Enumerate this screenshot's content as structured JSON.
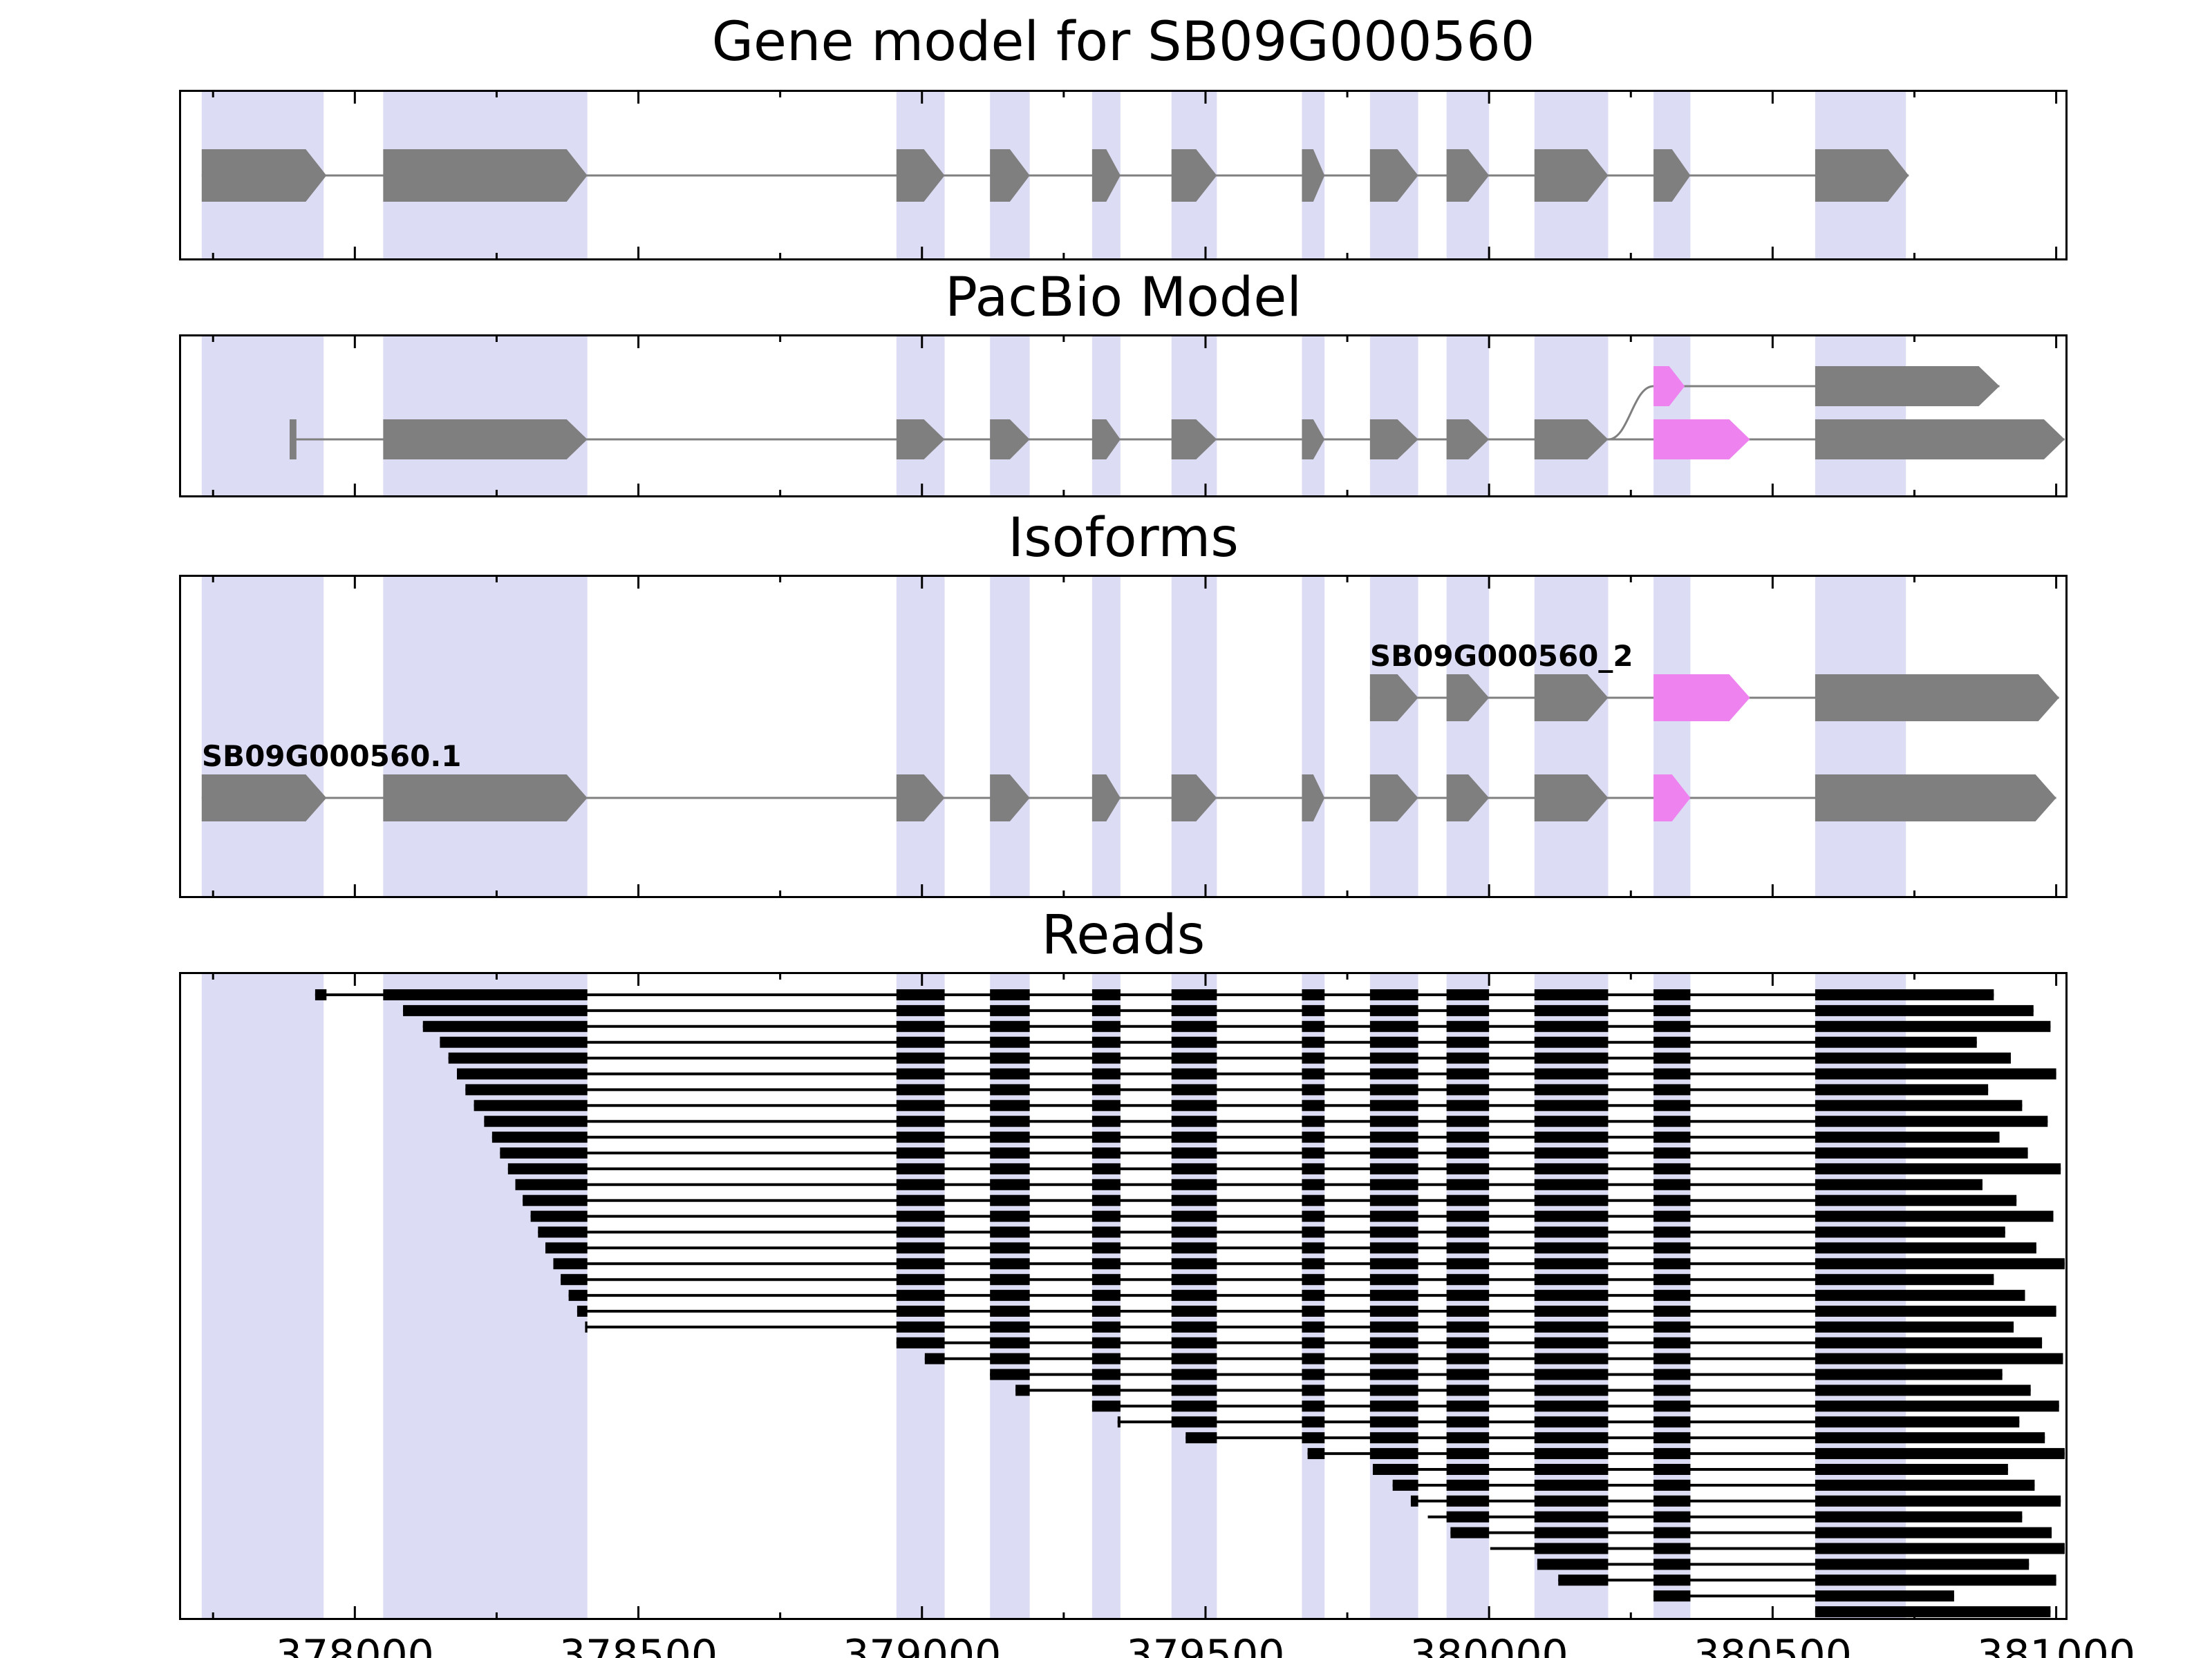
{
  "titles": {
    "gene_model": "Gene model for SB09G000560",
    "pacbio": "PacBio Model",
    "isoforms": "Isoforms",
    "reads": "Reads"
  },
  "colors": {
    "exon": "#7f7f7f",
    "novel": "#ee82ee",
    "band": "#dcdcf4",
    "line": "#7f7f7f",
    "read": "#000000",
    "border": "#000000"
  },
  "chart_data": {
    "type": "gene-model-browser",
    "xlim": [
      377690,
      381020
    ],
    "x_major_ticks": [
      {
        "value": 378000,
        "label": "378000"
      },
      {
        "value": 378500,
        "label": "378500"
      },
      {
        "value": 379000,
        "label": "379000"
      },
      {
        "value": 379500,
        "label": "379500"
      },
      {
        "value": 380000,
        "label": "380000"
      },
      {
        "value": 380500,
        "label": "380500"
      },
      {
        "value": 381000,
        "label": "381000"
      }
    ],
    "x_minor_step": 250,
    "x_major_step": 500,
    "highlight_regions": [
      [
        377730,
        377945
      ],
      [
        378050,
        378410
      ],
      [
        378955,
        379040
      ],
      [
        379120,
        379190
      ],
      [
        379300,
        379350
      ],
      [
        379440,
        379520
      ],
      [
        379670,
        379710
      ],
      [
        379790,
        379875
      ],
      [
        379925,
        380000
      ],
      [
        380080,
        380210
      ],
      [
        380290,
        380355
      ],
      [
        380575,
        380735
      ]
    ],
    "gene_model": {
      "line": [
        377730,
        380740
      ],
      "exons": [
        {
          "start": 377730,
          "end": 377950,
          "color": "exon"
        },
        {
          "start": 378050,
          "end": 378410,
          "color": "exon"
        },
        {
          "start": 378955,
          "end": 379040,
          "color": "exon"
        },
        {
          "start": 379120,
          "end": 379190,
          "color": "exon"
        },
        {
          "start": 379300,
          "end": 379350,
          "color": "exon"
        },
        {
          "start": 379440,
          "end": 379520,
          "color": "exon"
        },
        {
          "start": 379670,
          "end": 379710,
          "color": "exon"
        },
        {
          "start": 379790,
          "end": 379875,
          "color": "exon"
        },
        {
          "start": 379925,
          "end": 380000,
          "color": "exon"
        },
        {
          "start": 380080,
          "end": 380210,
          "color": "exon"
        },
        {
          "start": 380290,
          "end": 380355,
          "color": "exon"
        },
        {
          "start": 380575,
          "end": 380740,
          "color": "exon"
        }
      ]
    },
    "pacbio": {
      "connector": {
        "from": 380210,
        "to": 380290
      },
      "transcripts": [
        {
          "row": 0,
          "line": [
            380290,
            380900
          ],
          "exons": [
            {
              "start": 380290,
              "end": 380345,
              "color": "novel"
            },
            {
              "start": 380575,
              "end": 380900,
              "color": "exon"
            }
          ]
        },
        {
          "row": 1,
          "line": [
            377885,
            381015
          ],
          "exons": [
            {
              "start": 377885,
              "end": 377897,
              "color": "exon",
              "arrow": false
            },
            {
              "start": 378050,
              "end": 378410,
              "color": "exon"
            },
            {
              "start": 378955,
              "end": 379040,
              "color": "exon"
            },
            {
              "start": 379120,
              "end": 379190,
              "color": "exon"
            },
            {
              "start": 379300,
              "end": 379350,
              "color": "exon"
            },
            {
              "start": 379440,
              "end": 379520,
              "color": "exon"
            },
            {
              "start": 379670,
              "end": 379710,
              "color": "exon"
            },
            {
              "start": 379790,
              "end": 379875,
              "color": "exon"
            },
            {
              "start": 379925,
              "end": 380000,
              "color": "exon"
            },
            {
              "start": 380080,
              "end": 380210,
              "color": "exon"
            },
            {
              "start": 380290,
              "end": 380460,
              "color": "novel"
            },
            {
              "start": 380575,
              "end": 381015,
              "color": "exon"
            }
          ]
        }
      ]
    },
    "isoforms": [
      {
        "name": "SB09G000560_2",
        "row": 0,
        "line": [
          379790,
          381005
        ],
        "exons": [
          {
            "start": 379790,
            "end": 379875,
            "color": "exon"
          },
          {
            "start": 379925,
            "end": 380000,
            "color": "exon"
          },
          {
            "start": 380080,
            "end": 380210,
            "color": "exon"
          },
          {
            "start": 380290,
            "end": 380460,
            "color": "novel"
          },
          {
            "start": 380575,
            "end": 381005,
            "color": "exon"
          }
        ]
      },
      {
        "name": "SB09G000560.1",
        "row": 1,
        "line": [
          377730,
          381000
        ],
        "exons": [
          {
            "start": 377730,
            "end": 377950,
            "color": "exon"
          },
          {
            "start": 378050,
            "end": 378410,
            "color": "exon"
          },
          {
            "start": 378955,
            "end": 379040,
            "color": "exon"
          },
          {
            "start": 379120,
            "end": 379190,
            "color": "exon"
          },
          {
            "start": 379300,
            "end": 379350,
            "color": "exon"
          },
          {
            "start": 379440,
            "end": 379520,
            "color": "exon"
          },
          {
            "start": 379670,
            "end": 379710,
            "color": "exon"
          },
          {
            "start": 379790,
            "end": 379875,
            "color": "exon"
          },
          {
            "start": 379925,
            "end": 380000,
            "color": "exon"
          },
          {
            "start": 380080,
            "end": 380210,
            "color": "exon"
          },
          {
            "start": 380290,
            "end": 380355,
            "color": "novel"
          },
          {
            "start": 380575,
            "end": 381000,
            "color": "exon"
          }
        ]
      }
    ],
    "read_exon_template": [
      [
        377730,
        377950
      ],
      [
        378050,
        378410
      ],
      [
        378955,
        379040
      ],
      [
        379120,
        379190
      ],
      [
        379300,
        379350
      ],
      [
        379440,
        379520
      ],
      [
        379670,
        379710
      ],
      [
        379790,
        379875
      ],
      [
        379925,
        380000
      ],
      [
        380080,
        380210
      ],
      [
        380290,
        380355
      ],
      [
        380575,
        381060
      ]
    ],
    "reads": [
      [
        377930,
        380890
      ],
      [
        378085,
        380960
      ],
      [
        378120,
        380990
      ],
      [
        378150,
        380860
      ],
      [
        378165,
        380920
      ],
      [
        378180,
        381000
      ],
      [
        378195,
        380880
      ],
      [
        378210,
        380940
      ],
      [
        378228,
        380985
      ],
      [
        378242,
        380900
      ],
      [
        378256,
        380950
      ],
      [
        378270,
        381008
      ],
      [
        378283,
        380870
      ],
      [
        378296,
        380930
      ],
      [
        378310,
        380995
      ],
      [
        378323,
        380910
      ],
      [
        378336,
        380965
      ],
      [
        378350,
        381015
      ],
      [
        378363,
        380890
      ],
      [
        378377,
        380945
      ],
      [
        378392,
        381000
      ],
      [
        378406,
        380925
      ],
      [
        378955,
        380975
      ],
      [
        379005,
        381012
      ],
      [
        379120,
        380905
      ],
      [
        379165,
        380955
      ],
      [
        379300,
        381005
      ],
      [
        379345,
        380935
      ],
      [
        379465,
        380980
      ],
      [
        379680,
        381015
      ],
      [
        379795,
        380915
      ],
      [
        379830,
        380962
      ],
      [
        379862,
        381008
      ],
      [
        379892,
        380940
      ],
      [
        379932,
        380992
      ],
      [
        380002,
        381015
      ],
      [
        380085,
        380952
      ],
      [
        380122,
        381000
      ],
      [
        380290,
        380820
      ],
      [
        380575,
        380990
      ]
    ]
  }
}
